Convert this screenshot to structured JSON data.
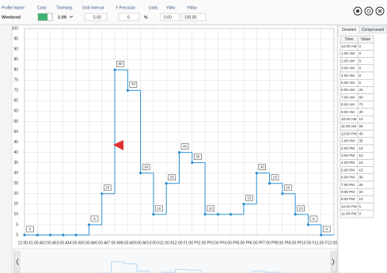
{
  "toolbar": {
    "labels": [
      "Profile Name",
      "Color",
      "Timestep",
      "Grid Interval",
      "Y Precision",
      "Units",
      "YMin",
      "YMax"
    ],
    "profile_name": "Weekend",
    "timestep": "1:00",
    "grid_interval": "5.00",
    "y_precision": "0",
    "units": "%",
    "ymin": "0.00",
    "ymax": "100.00"
  },
  "chart_data": {
    "type": "step",
    "color": "#2a8fd0",
    "grid": true,
    "x": [
      0,
      1,
      2,
      3,
      4,
      5,
      6,
      7,
      8,
      9,
      10,
      11,
      12,
      13,
      14,
      15,
      16,
      17,
      18,
      19,
      20,
      21,
      22,
      23
    ],
    "values": [
      0,
      0,
      0,
      0,
      0,
      5,
      20,
      80,
      70,
      30,
      10,
      25,
      40,
      35,
      10,
      10,
      10,
      15,
      30,
      25,
      20,
      10,
      5,
      0
    ],
    "xlim": [
      0,
      24
    ],
    "xticks": [
      {
        "value": 0,
        "label": "12:00 AM"
      },
      {
        "value": 1,
        "label": "1:00 AM"
      },
      {
        "value": 2,
        "label": "2:00 AM"
      },
      {
        "value": 3,
        "label": "3:00 AM"
      },
      {
        "value": 4,
        "label": "4:00 AM"
      },
      {
        "value": 5,
        "label": "5:00 AM"
      },
      {
        "value": 6,
        "label": "6:00 AM"
      },
      {
        "value": 7,
        "label": "7:00 AM"
      },
      {
        "value": 8,
        "label": "8:00 AM"
      },
      {
        "value": 9,
        "label": "9:00 AM"
      },
      {
        "value": 10,
        "label": "10:00 AM"
      },
      {
        "value": 11,
        "label": "11:00 AM"
      },
      {
        "value": 12,
        "label": "12:00 PM"
      },
      {
        "value": 13,
        "label": "1:00 PM"
      },
      {
        "value": 14,
        "label": "2:00 PM"
      },
      {
        "value": 15,
        "label": "3:00 PM"
      },
      {
        "value": 16,
        "label": "4:00 PM"
      },
      {
        "value": 17,
        "label": "5:00 PM"
      },
      {
        "value": 18,
        "label": "6:00 PM"
      },
      {
        "value": 19,
        "label": "7:00 PM"
      },
      {
        "value": 20,
        "label": "8:00 PM"
      },
      {
        "value": 21,
        "label": "9:00 PM"
      },
      {
        "value": 22,
        "label": "10:00 PM"
      },
      {
        "value": 23,
        "label": "11:00 PM"
      },
      {
        "value": 24,
        "label": "12:00 AM"
      }
    ],
    "ylim": [
      0,
      100
    ],
    "yticks": [
      0,
      5,
      10,
      15,
      20,
      25,
      30,
      35,
      40,
      45,
      50,
      55,
      60,
      65,
      70,
      75,
      80,
      85,
      90,
      95,
      100
    ]
  },
  "table": {
    "tabs": [
      "Detailed",
      "Compressed"
    ],
    "columns": [
      "Time",
      "Value"
    ],
    "rows": [
      [
        "12:00 AM",
        "0"
      ],
      [
        "1:00 AM",
        "0"
      ],
      [
        "2:00 AM",
        "0"
      ],
      [
        "3:00 AM",
        "0"
      ],
      [
        "4:00 AM",
        "0"
      ],
      [
        "5:00 AM",
        "5"
      ],
      [
        "6:00 AM",
        "20"
      ],
      [
        "7:00 AM",
        "80"
      ],
      [
        "8:00 AM",
        "70"
      ],
      [
        "9:00 AM",
        "30"
      ],
      [
        "10:00 AM",
        "10"
      ],
      [
        "11:00 AM",
        "25"
      ],
      [
        "12:00 PM",
        "40"
      ],
      [
        "1:00 PM",
        "35"
      ],
      [
        "2:00 PM",
        "10"
      ],
      [
        "3:00 PM",
        "10"
      ],
      [
        "4:00 PM",
        "10"
      ],
      [
        "5:00 PM",
        "15"
      ],
      [
        "6:00 PM",
        "30"
      ],
      [
        "7:00 PM",
        "25"
      ],
      [
        "8:00 PM",
        "20"
      ],
      [
        "9:00 PM",
        "10"
      ],
      [
        "10:00 PM",
        "5"
      ],
      [
        "11:00 PM",
        "0"
      ]
    ]
  }
}
